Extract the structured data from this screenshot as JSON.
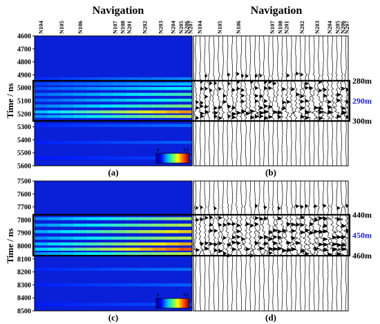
{
  "panels": {
    "a": {
      "label": "(a)"
    },
    "b": {
      "label": "(b)"
    },
    "c": {
      "label": "(c)"
    },
    "d": {
      "label": "(d)"
    }
  },
  "colorbar": {
    "min_label": "0",
    "max_label": "0.5"
  },
  "chart_data": [
    {
      "type": "heatmap",
      "panel": "(a)",
      "title": "Navigation",
      "ylabel": "Time / ns",
      "xlabel": "",
      "categories": [
        "N104",
        "N105",
        "N106",
        "N107",
        "N108",
        "N201",
        "N202",
        "N203",
        "N204",
        "N205",
        "N206",
        "N207"
      ],
      "ylim": [
        4600,
        5600
      ],
      "y_ticks": [
        4600,
        4700,
        4800,
        4900,
        5000,
        5100,
        5200,
        5300,
        5400,
        5500,
        5600
      ],
      "colorbar_range": [
        0,
        0.5
      ],
      "band_labels": [],
      "grid": false,
      "bands": [
        {
          "t": 4930,
          "amp": 0.1
        },
        {
          "t": 4970,
          "amp": 0.14
        },
        {
          "t": 5005,
          "amp": 0.18
        },
        {
          "t": 5050,
          "amp": 0.22
        },
        {
          "t": 5095,
          "amp": 0.2
        },
        {
          "t": 5140,
          "amp": 0.26
        },
        {
          "t": 5185,
          "amp": 0.4
        },
        {
          "t": 5220,
          "amp": 0.3
        },
        {
          "t": 5290,
          "amp": 0.08
        },
        {
          "t": 5420,
          "amp": 0.07
        },
        {
          "t": 5540,
          "amp": 0.05
        }
      ]
    },
    {
      "type": "line",
      "panel": "(b)",
      "title": "Navigation",
      "xlabel": "",
      "ylabel": "",
      "categories": [
        "N104",
        "N105",
        "N106",
        "N107",
        "N108",
        "N201",
        "N202",
        "N203",
        "N204",
        "N205",
        "N206",
        "N207"
      ],
      "ylim": [
        4600,
        5600
      ],
      "window": [
        4945,
        5255
      ],
      "band_labels": [
        "280m",
        "290m",
        "300m"
      ],
      "band_label_colors": [
        "#000000",
        "#1f1fcc",
        "#000000"
      ],
      "active": [
        4880,
        5260
      ],
      "bands": [
        {
          "t": 4900,
          "amp": 0.25
        },
        {
          "t": 4960,
          "amp": 0.35
        },
        {
          "t": 5010,
          "amp": 0.4
        },
        {
          "t": 5060,
          "amp": 0.45
        },
        {
          "t": 5105,
          "amp": 0.45
        },
        {
          "t": 5150,
          "amp": 0.55
        },
        {
          "t": 5190,
          "amp": 0.8
        },
        {
          "t": 5225,
          "amp": 0.55
        }
      ]
    },
    {
      "type": "heatmap",
      "panel": "(c)",
      "title": "",
      "ylabel": "Time / ns",
      "xlabel": "",
      "categories": [],
      "ylim": [
        7500,
        8500
      ],
      "y_ticks": [
        7500,
        7600,
        7700,
        7800,
        7900,
        8000,
        8100,
        8200,
        8300,
        8400,
        8500
      ],
      "colorbar_range": [
        0,
        0.5
      ],
      "band_labels": [],
      "grid": false,
      "bands": [
        {
          "t": 7790,
          "amp": 0.28
        },
        {
          "t": 7840,
          "amp": 0.3
        },
        {
          "t": 7890,
          "amp": 0.36
        },
        {
          "t": 7940,
          "amp": 0.3
        },
        {
          "t": 7985,
          "amp": 0.38
        },
        {
          "t": 8025,
          "amp": 0.45
        },
        {
          "t": 8060,
          "amp": 0.3
        },
        {
          "t": 8180,
          "amp": 0.08
        },
        {
          "t": 8300,
          "amp": 0.07
        },
        {
          "t": 8450,
          "amp": 0.06
        }
      ]
    },
    {
      "type": "line",
      "panel": "(d)",
      "title": "",
      "xlabel": "",
      "ylabel": "",
      "categories": [],
      "ylim": [
        7500,
        8500
      ],
      "window": [
        7760,
        8075
      ],
      "band_labels": [
        "440m",
        "450m",
        "460m"
      ],
      "band_label_colors": [
        "#000000",
        "#1f1fcc",
        "#000000"
      ],
      "active": [
        7680,
        8080
      ],
      "bands": [
        {
          "t": 7700,
          "amp": 0.3
        },
        {
          "t": 7790,
          "amp": 0.6
        },
        {
          "t": 7840,
          "amp": 0.55
        },
        {
          "t": 7890,
          "amp": 0.65
        },
        {
          "t": 7940,
          "amp": 0.6
        },
        {
          "t": 7985,
          "amp": 0.7
        },
        {
          "t": 8030,
          "amp": 0.8
        },
        {
          "t": 8065,
          "amp": 0.55
        }
      ]
    }
  ]
}
